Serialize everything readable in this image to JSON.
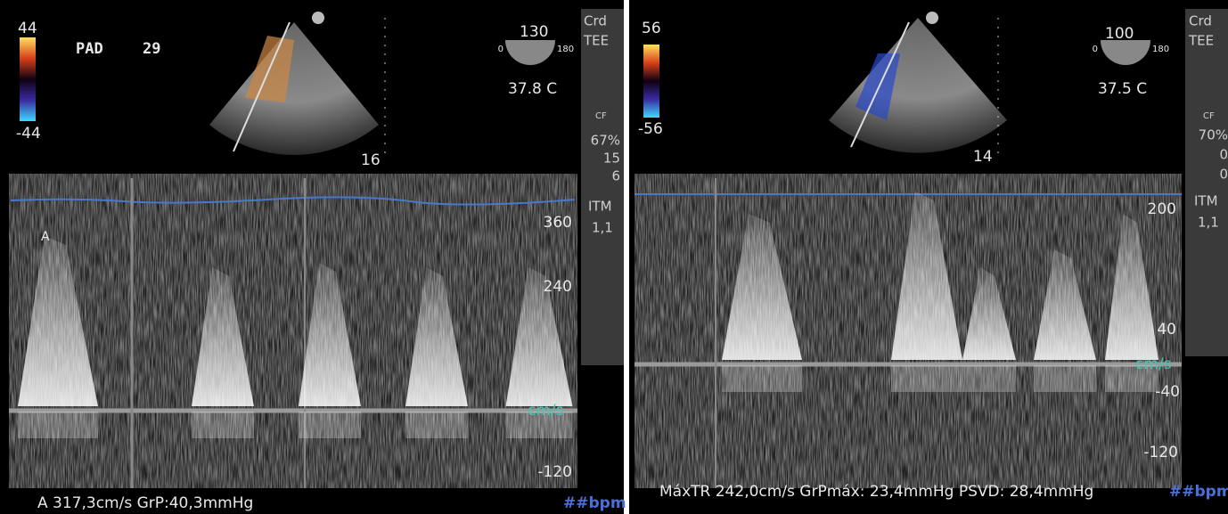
{
  "left": {
    "color_scale": {
      "max": "44",
      "min": "-44"
    },
    "mode_label": "PAD",
    "mode_value": "29",
    "angle": {
      "value": "130",
      "min": "0",
      "max": "180"
    },
    "temperature": "37.8 C",
    "depth": "16",
    "side_panel": {
      "line1": "Crd",
      "line2": "TEE",
      "cf": "CF",
      "gain": "67%",
      "val1": "15",
      "val2": "6",
      "itm": "ITM",
      "itm_value": "1,1"
    },
    "scale_labels": [
      "360",
      "240",
      "-120"
    ],
    "unit": "cm/s",
    "marker": "A",
    "measurement": "A 317,3cm/s GrP:40,3mmHg",
    "heart_rate": "##bpm"
  },
  "right": {
    "color_scale": {
      "max": "56",
      "min": "-56"
    },
    "angle": {
      "value": "100",
      "min": "0",
      "max": "180"
    },
    "temperature": "37.5 C",
    "depth": "14",
    "side_panel": {
      "line1": "Crd",
      "line2": "TEE",
      "cf": "CF",
      "gain": "70%",
      "val1": "0",
      "val2": "0",
      "itm": "ITM",
      "itm_value": "1,1"
    },
    "scale_labels": [
      "200",
      "40",
      "-40",
      "-120"
    ],
    "unit": "cm/s",
    "measurement": "MáxTR 242,0cm/s GrPmáx: 23,4mmHg PSVD: 28,4mmHg",
    "heart_rate": "##bpm"
  }
}
